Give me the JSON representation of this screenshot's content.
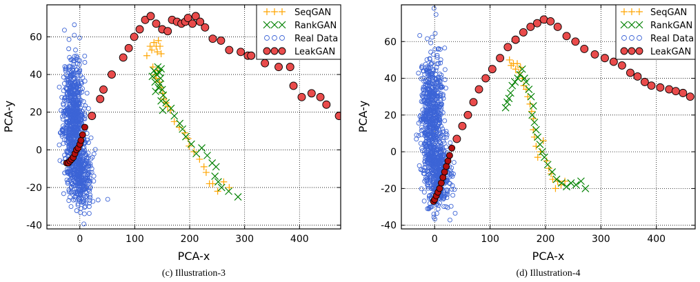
{
  "colors": {
    "seqgan": "#ffa500",
    "rankgan": "#008000",
    "real_data": "#3c64d6",
    "leakgan_fill": "#e94b4b",
    "leakgan_deep": "#b40f0f"
  },
  "chart_data": [
    {
      "type": "scatter",
      "caption": "(c) Illustration-3",
      "xlabel": "PCA-x",
      "ylabel": "PCA-y",
      "xlim": [
        -60,
        475
      ],
      "ylim": [
        -42,
        77
      ],
      "xticks": [
        0,
        100,
        200,
        300,
        400
      ],
      "yticks": [
        -40,
        -20,
        0,
        20,
        40,
        60
      ],
      "grid": true,
      "legend_position": "top-right",
      "legend": [
        "SeqGAN",
        "RankGAN",
        "Real Data",
        "LeakGAN"
      ],
      "series": [
        {
          "name": "SeqGAN",
          "marker": "plus",
          "points": [
            [
              122,
              50
            ],
            [
              128,
              55
            ],
            [
              131,
              53
            ],
            [
              135,
              57
            ],
            [
              139,
              55
            ],
            [
              143,
              58
            ],
            [
              146,
              55
            ],
            [
              141,
              52
            ],
            [
              148,
              51
            ],
            [
              133,
              44
            ],
            [
              137,
              40
            ],
            [
              139,
              38
            ],
            [
              142,
              42
            ],
            [
              145,
              36
            ],
            [
              148,
              33
            ],
            [
              151,
              30
            ],
            [
              153,
              27
            ],
            [
              157,
              25
            ],
            [
              160,
              23
            ],
            [
              165,
              21
            ],
            [
              172,
              15
            ],
            [
              181,
              12
            ],
            [
              191,
              9
            ],
            [
              197,
              6
            ],
            [
              199,
              2
            ],
            [
              208,
              -1
            ],
            [
              218,
              -5
            ],
            [
              226,
              -9
            ],
            [
              230,
              -12
            ],
            [
              236,
              -18
            ],
            [
              242,
              -18
            ],
            [
              251,
              -22
            ],
            [
              262,
              -17
            ],
            [
              272,
              -20
            ]
          ]
        },
        {
          "name": "RankGAN",
          "marker": "x",
          "points": [
            [
              132,
              39
            ],
            [
              135,
              42
            ],
            [
              137,
              36
            ],
            [
              140,
              40
            ],
            [
              142,
              44
            ],
            [
              145,
              41
            ],
            [
              147,
              38
            ],
            [
              146,
              35
            ],
            [
              150,
              32
            ],
            [
              152,
              29
            ],
            [
              148,
              43
            ],
            [
              138,
              31
            ],
            [
              143,
              33
            ],
            [
              148,
              26
            ],
            [
              151,
              21
            ],
            [
              157,
              25
            ],
            [
              166,
              22
            ],
            [
              172,
              18
            ],
            [
              182,
              14
            ],
            [
              187,
              11
            ],
            [
              193,
              7
            ],
            [
              203,
              3
            ],
            [
              212,
              -2
            ],
            [
              222,
              1
            ],
            [
              232,
              -3
            ],
            [
              241,
              -7
            ],
            [
              248,
              -9
            ],
            [
              246,
              -14
            ],
            [
              252,
              -17
            ],
            [
              258,
              -20
            ],
            [
              271,
              -22
            ],
            [
              288,
              -25
            ]
          ]
        },
        {
          "name": "LeakGAN",
          "marker": "circle",
          "points": [
            [
              -24,
              -7
            ],
            [
              -21,
              -7
            ],
            [
              -18,
              -6
            ],
            [
              -15,
              -5
            ],
            [
              -12,
              -4
            ],
            [
              -9,
              -2
            ],
            [
              -6,
              0
            ],
            [
              -3,
              1
            ],
            [
              0,
              3
            ],
            [
              2,
              5
            ],
            [
              5,
              8
            ],
            [
              9,
              12
            ],
            [
              22,
              18
            ],
            [
              37,
              27
            ],
            [
              43,
              32
            ],
            [
              58,
              40
            ],
            [
              79,
              49
            ],
            [
              89,
              54
            ],
            [
              99,
              60
            ],
            [
              109,
              64
            ],
            [
              119,
              69
            ],
            [
              129,
              71
            ],
            [
              139,
              67
            ],
            [
              150,
              64
            ],
            [
              160,
              63
            ],
            [
              168,
              69
            ],
            [
              177,
              68
            ],
            [
              185,
              67
            ],
            [
              192,
              68
            ],
            [
              197,
              70
            ],
            [
              205,
              67
            ],
            [
              211,
              71
            ],
            [
              219,
              68
            ],
            [
              228,
              65
            ],
            [
              242,
              59
            ],
            [
              257,
              58
            ],
            [
              272,
              53
            ],
            [
              293,
              52
            ],
            [
              306,
              50
            ],
            [
              312,
              50
            ],
            [
              337,
              46
            ],
            [
              362,
              44
            ],
            [
              383,
              44
            ],
            [
              389,
              34
            ],
            [
              404,
              28
            ],
            [
              422,
              30
            ],
            [
              438,
              28
            ],
            [
              449,
              24
            ],
            [
              472,
              18
            ]
          ]
        }
      ]
    },
    {
      "type": "scatter",
      "caption": "(d) Illustration-4",
      "xlabel": "PCA-x",
      "ylabel": "PCA-y",
      "xlim": [
        -60,
        470
      ],
      "ylim": [
        -42,
        80
      ],
      "xticks": [
        0,
        100,
        200,
        300,
        400
      ],
      "yticks": [
        -40,
        -20,
        0,
        20,
        40,
        60
      ],
      "grid": true,
      "legend_position": "top-right",
      "legend": [
        "SeqGAN",
        "RankGAN",
        "Real Data",
        "LeakGAN"
      ],
      "series": [
        {
          "name": "SeqGAN",
          "marker": "plus",
          "points": [
            [
              135,
              50
            ],
            [
              138,
              47
            ],
            [
              142,
              48
            ],
            [
              146,
              45
            ],
            [
              149,
              48
            ],
            [
              152,
              43
            ],
            [
              155,
              46
            ],
            [
              158,
              40
            ],
            [
              161,
              36
            ],
            [
              165,
              34
            ],
            [
              168,
              30
            ],
            [
              172,
              26
            ],
            [
              175,
              22
            ],
            [
              178,
              18
            ],
            [
              178,
              12
            ],
            [
              180,
              8
            ],
            [
              183,
              3
            ],
            [
              186,
              -3
            ],
            [
              191,
              0
            ],
            [
              196,
              6
            ],
            [
              202,
              -5
            ],
            [
              206,
              -9
            ],
            [
              210,
              -12
            ],
            [
              213,
              -15
            ],
            [
              218,
              -20
            ],
            [
              222,
              -16
            ],
            [
              228,
              -18
            ],
            [
              235,
              -16
            ]
          ]
        },
        {
          "name": "RankGAN",
          "marker": "x",
          "points": [
            [
              128,
              24
            ],
            [
              131,
              27
            ],
            [
              134,
              29
            ],
            [
              137,
              32
            ],
            [
              140,
              36
            ],
            [
              145,
              38
            ],
            [
              150,
              40
            ],
            [
              154,
              42
            ],
            [
              158,
              45
            ],
            [
              162,
              40
            ],
            [
              165,
              38
            ],
            [
              170,
              34
            ],
            [
              174,
              30
            ],
            [
              178,
              25
            ],
            [
              176,
              20
            ],
            [
              180,
              16
            ],
            [
              183,
              12
            ],
            [
              186,
              8
            ],
            [
              190,
              4
            ],
            [
              194,
              0
            ],
            [
              198,
              -3
            ],
            [
              204,
              -7
            ],
            [
              212,
              -11
            ],
            [
              220,
              -15
            ],
            [
              229,
              -17
            ],
            [
              238,
              -19
            ],
            [
              246,
              -17
            ],
            [
              255,
              -18
            ],
            [
              264,
              -16
            ],
            [
              272,
              -20
            ]
          ]
        },
        {
          "name": "LeakGAN",
          "marker": "circle",
          "points": [
            [
              -2,
              -27
            ],
            [
              0,
              -26
            ],
            [
              3,
              -24
            ],
            [
              6,
              -22
            ],
            [
              9,
              -20
            ],
            [
              12,
              -17
            ],
            [
              15,
              -14
            ],
            [
              18,
              -11
            ],
            [
              21,
              -8
            ],
            [
              24,
              -5
            ],
            [
              27,
              -2
            ],
            [
              31,
              2
            ],
            [
              40,
              7
            ],
            [
              50,
              14
            ],
            [
              60,
              20
            ],
            [
              70,
              27
            ],
            [
              80,
              34
            ],
            [
              92,
              40
            ],
            [
              104,
              45
            ],
            [
              118,
              51
            ],
            [
              132,
              57
            ],
            [
              146,
              61
            ],
            [
              160,
              65
            ],
            [
              173,
              68
            ],
            [
              185,
              70
            ],
            [
              197,
              72
            ],
            [
              209,
              71
            ],
            [
              222,
              68
            ],
            [
              238,
              63
            ],
            [
              254,
              60
            ],
            [
              270,
              56
            ],
            [
              289,
              53
            ],
            [
              307,
              51
            ],
            [
              323,
              49
            ],
            [
              338,
              47
            ],
            [
              353,
              43
            ],
            [
              366,
              41
            ],
            [
              379,
              38
            ],
            [
              391,
              36
            ],
            [
              407,
              35
            ],
            [
              423,
              34
            ],
            [
              435,
              33
            ],
            [
              448,
              32
            ],
            [
              461,
              30
            ]
          ]
        }
      ]
    }
  ]
}
